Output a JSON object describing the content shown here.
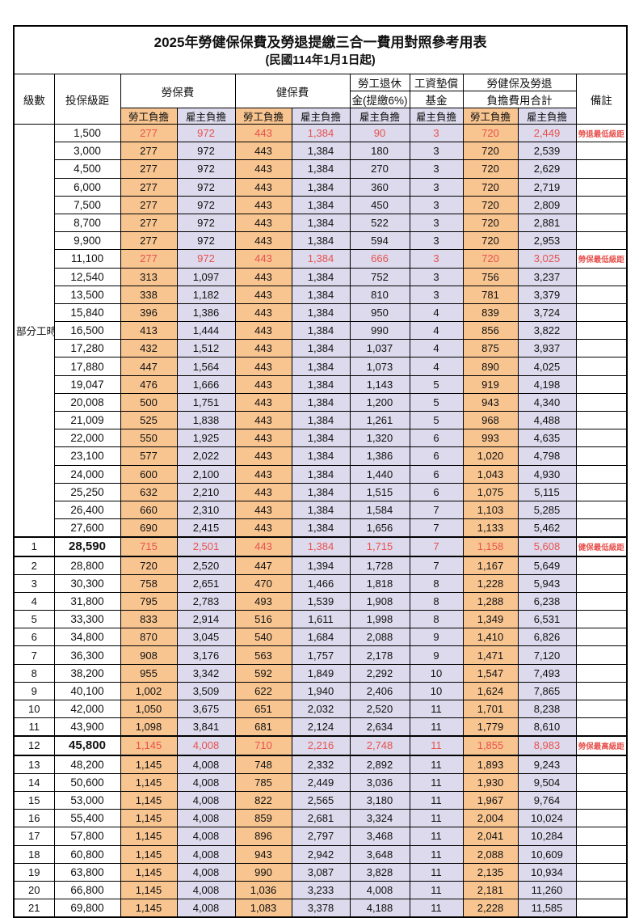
{
  "title": "2025年勞健保保費及勞退提繳三合一費用對照參考用表",
  "subtitle": "(民國114年1月1日起)",
  "colors": {
    "employee_bg": "#F8C591",
    "employer_bg": "#DCDAEC",
    "highlight_red": "#E8524E"
  },
  "header": {
    "level": "級數",
    "bracket": "投保級距",
    "labor_insurance": "勞保費",
    "health_insurance": "健保費",
    "pension_line1": "勞工退休",
    "pension_line2": "金(提繳6%)",
    "wage_fund_line1": "工資墊償",
    "wage_fund_line2": "基金",
    "total_line1": "勞健保及勞退",
    "total_line2": "負擔費用合計",
    "note": "備註",
    "employee": "勞工負擔",
    "employer": "雇主負擔"
  },
  "part_time_label": "部分工時",
  "rows": [
    {
      "group": "part-time",
      "level": "",
      "bracket": "1,500",
      "li_emp": "277",
      "li_er": "972",
      "hi_emp": "443",
      "hi_er": "1,384",
      "pension": "90",
      "fund": "3",
      "tot_emp": "720",
      "tot_er": "2,449",
      "note": "勞退最低級距",
      "red": true,
      "bold": false,
      "thick": false
    },
    {
      "group": "part-time",
      "level": "",
      "bracket": "3,000",
      "li_emp": "277",
      "li_er": "972",
      "hi_emp": "443",
      "hi_er": "1,384",
      "pension": "180",
      "fund": "3",
      "tot_emp": "720",
      "tot_er": "2,539",
      "note": "",
      "red": false,
      "bold": false,
      "thick": false
    },
    {
      "group": "part-time",
      "level": "",
      "bracket": "4,500",
      "li_emp": "277",
      "li_er": "972",
      "hi_emp": "443",
      "hi_er": "1,384",
      "pension": "270",
      "fund": "3",
      "tot_emp": "720",
      "tot_er": "2,629",
      "note": "",
      "red": false,
      "bold": false,
      "thick": false
    },
    {
      "group": "part-time",
      "level": "",
      "bracket": "6,000",
      "li_emp": "277",
      "li_er": "972",
      "hi_emp": "443",
      "hi_er": "1,384",
      "pension": "360",
      "fund": "3",
      "tot_emp": "720",
      "tot_er": "2,719",
      "note": "",
      "red": false,
      "bold": false,
      "thick": false
    },
    {
      "group": "part-time",
      "level": "",
      "bracket": "7,500",
      "li_emp": "277",
      "li_er": "972",
      "hi_emp": "443",
      "hi_er": "1,384",
      "pension": "450",
      "fund": "3",
      "tot_emp": "720",
      "tot_er": "2,809",
      "note": "",
      "red": false,
      "bold": false,
      "thick": false
    },
    {
      "group": "part-time",
      "level": "",
      "bracket": "8,700",
      "li_emp": "277",
      "li_er": "972",
      "hi_emp": "443",
      "hi_er": "1,384",
      "pension": "522",
      "fund": "3",
      "tot_emp": "720",
      "tot_er": "2,881",
      "note": "",
      "red": false,
      "bold": false,
      "thick": false
    },
    {
      "group": "part-time",
      "level": "",
      "bracket": "9,900",
      "li_emp": "277",
      "li_er": "972",
      "hi_emp": "443",
      "hi_er": "1,384",
      "pension": "594",
      "fund": "3",
      "tot_emp": "720",
      "tot_er": "2,953",
      "note": "",
      "red": false,
      "bold": false,
      "thick": false
    },
    {
      "group": "part-time",
      "level": "",
      "bracket": "11,100",
      "li_emp": "277",
      "li_er": "972",
      "hi_emp": "443",
      "hi_er": "1,384",
      "pension": "666",
      "fund": "3",
      "tot_emp": "720",
      "tot_er": "3,025",
      "note": "勞保最低級距",
      "red": true,
      "bold": false,
      "thick": false
    },
    {
      "group": "part-time",
      "level": "",
      "bracket": "12,540",
      "li_emp": "313",
      "li_er": "1,097",
      "hi_emp": "443",
      "hi_er": "1,384",
      "pension": "752",
      "fund": "3",
      "tot_emp": "756",
      "tot_er": "3,237",
      "note": "",
      "red": false,
      "bold": false,
      "thick": false
    },
    {
      "group": "part-time",
      "level": "",
      "bracket": "13,500",
      "li_emp": "338",
      "li_er": "1,182",
      "hi_emp": "443",
      "hi_er": "1,384",
      "pension": "810",
      "fund": "3",
      "tot_emp": "781",
      "tot_er": "3,379",
      "note": "",
      "red": false,
      "bold": false,
      "thick": false
    },
    {
      "group": "part-time",
      "level": "",
      "bracket": "15,840",
      "li_emp": "396",
      "li_er": "1,386",
      "hi_emp": "443",
      "hi_er": "1,384",
      "pension": "950",
      "fund": "4",
      "tot_emp": "839",
      "tot_er": "3,724",
      "note": "",
      "red": false,
      "bold": false,
      "thick": false
    },
    {
      "group": "part-time",
      "level": "",
      "bracket": "16,500",
      "li_emp": "413",
      "li_er": "1,444",
      "hi_emp": "443",
      "hi_er": "1,384",
      "pension": "990",
      "fund": "4",
      "tot_emp": "856",
      "tot_er": "3,822",
      "note": "",
      "red": false,
      "bold": false,
      "thick": false
    },
    {
      "group": "part-time",
      "level": "",
      "bracket": "17,280",
      "li_emp": "432",
      "li_er": "1,512",
      "hi_emp": "443",
      "hi_er": "1,384",
      "pension": "1,037",
      "fund": "4",
      "tot_emp": "875",
      "tot_er": "3,937",
      "note": "",
      "red": false,
      "bold": false,
      "thick": false
    },
    {
      "group": "part-time",
      "level": "",
      "bracket": "17,880",
      "li_emp": "447",
      "li_er": "1,564",
      "hi_emp": "443",
      "hi_er": "1,384",
      "pension": "1,073",
      "fund": "4",
      "tot_emp": "890",
      "tot_er": "4,025",
      "note": "",
      "red": false,
      "bold": false,
      "thick": false
    },
    {
      "group": "part-time",
      "level": "",
      "bracket": "19,047",
      "li_emp": "476",
      "li_er": "1,666",
      "hi_emp": "443",
      "hi_er": "1,384",
      "pension": "1,143",
      "fund": "5",
      "tot_emp": "919",
      "tot_er": "4,198",
      "note": "",
      "red": false,
      "bold": false,
      "thick": false
    },
    {
      "group": "part-time",
      "level": "",
      "bracket": "20,008",
      "li_emp": "500",
      "li_er": "1,751",
      "hi_emp": "443",
      "hi_er": "1,384",
      "pension": "1,200",
      "fund": "5",
      "tot_emp": "943",
      "tot_er": "4,340",
      "note": "",
      "red": false,
      "bold": false,
      "thick": false
    },
    {
      "group": "part-time",
      "level": "",
      "bracket": "21,009",
      "li_emp": "525",
      "li_er": "1,838",
      "hi_emp": "443",
      "hi_er": "1,384",
      "pension": "1,261",
      "fund": "5",
      "tot_emp": "968",
      "tot_er": "4,488",
      "note": "",
      "red": false,
      "bold": false,
      "thick": false
    },
    {
      "group": "part-time",
      "level": "",
      "bracket": "22,000",
      "li_emp": "550",
      "li_er": "1,925",
      "hi_emp": "443",
      "hi_er": "1,384",
      "pension": "1,320",
      "fund": "6",
      "tot_emp": "993",
      "tot_er": "4,635",
      "note": "",
      "red": false,
      "bold": false,
      "thick": false
    },
    {
      "group": "part-time",
      "level": "",
      "bracket": "23,100",
      "li_emp": "577",
      "li_er": "2,022",
      "hi_emp": "443",
      "hi_er": "1,384",
      "pension": "1,386",
      "fund": "6",
      "tot_emp": "1,020",
      "tot_er": "4,798",
      "note": "",
      "red": false,
      "bold": false,
      "thick": false
    },
    {
      "group": "part-time",
      "level": "",
      "bracket": "24,000",
      "li_emp": "600",
      "li_er": "2,100",
      "hi_emp": "443",
      "hi_er": "1,384",
      "pension": "1,440",
      "fund": "6",
      "tot_emp": "1,043",
      "tot_er": "4,930",
      "note": "",
      "red": false,
      "bold": false,
      "thick": false
    },
    {
      "group": "part-time",
      "level": "",
      "bracket": "25,250",
      "li_emp": "632",
      "li_er": "2,210",
      "hi_emp": "443",
      "hi_er": "1,384",
      "pension": "1,515",
      "fund": "6",
      "tot_emp": "1,075",
      "tot_er": "5,115",
      "note": "",
      "red": false,
      "bold": false,
      "thick": false
    },
    {
      "group": "part-time",
      "level": "",
      "bracket": "26,400",
      "li_emp": "660",
      "li_er": "2,310",
      "hi_emp": "443",
      "hi_er": "1,384",
      "pension": "1,584",
      "fund": "7",
      "tot_emp": "1,103",
      "tot_er": "5,285",
      "note": "",
      "red": false,
      "bold": false,
      "thick": false
    },
    {
      "group": "part-time",
      "level": "",
      "bracket": "27,600",
      "li_emp": "690",
      "li_er": "2,415",
      "hi_emp": "443",
      "hi_er": "1,384",
      "pension": "1,656",
      "fund": "7",
      "tot_emp": "1,133",
      "tot_er": "5,462",
      "note": "",
      "red": false,
      "bold": false,
      "thick": false
    },
    {
      "group": "level",
      "level": "1",
      "bracket": "28,590",
      "li_emp": "715",
      "li_er": "2,501",
      "hi_emp": "443",
      "hi_er": "1,384",
      "pension": "1,715",
      "fund": "7",
      "tot_emp": "1,158",
      "tot_er": "5,608",
      "note": "健保最低級距",
      "red": true,
      "bold": true,
      "thick": true
    },
    {
      "group": "level",
      "level": "2",
      "bracket": "28,800",
      "li_emp": "720",
      "li_er": "2,520",
      "hi_emp": "447",
      "hi_er": "1,394",
      "pension": "1,728",
      "fund": "7",
      "tot_emp": "1,167",
      "tot_er": "5,649",
      "note": "",
      "red": false,
      "bold": false,
      "thick": false
    },
    {
      "group": "level",
      "level": "3",
      "bracket": "30,300",
      "li_emp": "758",
      "li_er": "2,651",
      "hi_emp": "470",
      "hi_er": "1,466",
      "pension": "1,818",
      "fund": "8",
      "tot_emp": "1,228",
      "tot_er": "5,943",
      "note": "",
      "red": false,
      "bold": false,
      "thick": false
    },
    {
      "group": "level",
      "level": "4",
      "bracket": "31,800",
      "li_emp": "795",
      "li_er": "2,783",
      "hi_emp": "493",
      "hi_er": "1,539",
      "pension": "1,908",
      "fund": "8",
      "tot_emp": "1,288",
      "tot_er": "6,238",
      "note": "",
      "red": false,
      "bold": false,
      "thick": false
    },
    {
      "group": "level",
      "level": "5",
      "bracket": "33,300",
      "li_emp": "833",
      "li_er": "2,914",
      "hi_emp": "516",
      "hi_er": "1,611",
      "pension": "1,998",
      "fund": "8",
      "tot_emp": "1,349",
      "tot_er": "6,531",
      "note": "",
      "red": false,
      "bold": false,
      "thick": false
    },
    {
      "group": "level",
      "level": "6",
      "bracket": "34,800",
      "li_emp": "870",
      "li_er": "3,045",
      "hi_emp": "540",
      "hi_er": "1,684",
      "pension": "2,088",
      "fund": "9",
      "tot_emp": "1,410",
      "tot_er": "6,826",
      "note": "",
      "red": false,
      "bold": false,
      "thick": false
    },
    {
      "group": "level",
      "level": "7",
      "bracket": "36,300",
      "li_emp": "908",
      "li_er": "3,176",
      "hi_emp": "563",
      "hi_er": "1,757",
      "pension": "2,178",
      "fund": "9",
      "tot_emp": "1,471",
      "tot_er": "7,120",
      "note": "",
      "red": false,
      "bold": false,
      "thick": false
    },
    {
      "group": "level",
      "level": "8",
      "bracket": "38,200",
      "li_emp": "955",
      "li_er": "3,342",
      "hi_emp": "592",
      "hi_er": "1,849",
      "pension": "2,292",
      "fund": "10",
      "tot_emp": "1,547",
      "tot_er": "7,493",
      "note": "",
      "red": false,
      "bold": false,
      "thick": false
    },
    {
      "group": "level",
      "level": "9",
      "bracket": "40,100",
      "li_emp": "1,002",
      "li_er": "3,509",
      "hi_emp": "622",
      "hi_er": "1,940",
      "pension": "2,406",
      "fund": "10",
      "tot_emp": "1,624",
      "tot_er": "7,865",
      "note": "",
      "red": false,
      "bold": false,
      "thick": false
    },
    {
      "group": "level",
      "level": "10",
      "bracket": "42,000",
      "li_emp": "1,050",
      "li_er": "3,675",
      "hi_emp": "651",
      "hi_er": "2,032",
      "pension": "2,520",
      "fund": "11",
      "tot_emp": "1,701",
      "tot_er": "8,238",
      "note": "",
      "red": false,
      "bold": false,
      "thick": false
    },
    {
      "group": "level",
      "level": "11",
      "bracket": "43,900",
      "li_emp": "1,098",
      "li_er": "3,841",
      "hi_emp": "681",
      "hi_er": "2,124",
      "pension": "2,634",
      "fund": "11",
      "tot_emp": "1,779",
      "tot_er": "8,610",
      "note": "",
      "red": false,
      "bold": false,
      "thick": false
    },
    {
      "group": "level",
      "level": "12",
      "bracket": "45,800",
      "li_emp": "1,145",
      "li_er": "4,008",
      "hi_emp": "710",
      "hi_er": "2,216",
      "pension": "2,748",
      "fund": "11",
      "tot_emp": "1,855",
      "tot_er": "8,983",
      "note": "勞保最高級距",
      "red": true,
      "bold": true,
      "thick": true
    },
    {
      "group": "level",
      "level": "13",
      "bracket": "48,200",
      "li_emp": "1,145",
      "li_er": "4,008",
      "hi_emp": "748",
      "hi_er": "2,332",
      "pension": "2,892",
      "fund": "11",
      "tot_emp": "1,893",
      "tot_er": "9,243",
      "note": "",
      "red": false,
      "bold": false,
      "thick": false
    },
    {
      "group": "level",
      "level": "14",
      "bracket": "50,600",
      "li_emp": "1,145",
      "li_er": "4,008",
      "hi_emp": "785",
      "hi_er": "2,449",
      "pension": "3,036",
      "fund": "11",
      "tot_emp": "1,930",
      "tot_er": "9,504",
      "note": "",
      "red": false,
      "bold": false,
      "thick": false
    },
    {
      "group": "level",
      "level": "15",
      "bracket": "53,000",
      "li_emp": "1,145",
      "li_er": "4,008",
      "hi_emp": "822",
      "hi_er": "2,565",
      "pension": "3,180",
      "fund": "11",
      "tot_emp": "1,967",
      "tot_er": "9,764",
      "note": "",
      "red": false,
      "bold": false,
      "thick": false
    },
    {
      "group": "level",
      "level": "16",
      "bracket": "55,400",
      "li_emp": "1,145",
      "li_er": "4,008",
      "hi_emp": "859",
      "hi_er": "2,681",
      "pension": "3,324",
      "fund": "11",
      "tot_emp": "2,004",
      "tot_er": "10,024",
      "note": "",
      "red": false,
      "bold": false,
      "thick": false
    },
    {
      "group": "level",
      "level": "17",
      "bracket": "57,800",
      "li_emp": "1,145",
      "li_er": "4,008",
      "hi_emp": "896",
      "hi_er": "2,797",
      "pension": "3,468",
      "fund": "11",
      "tot_emp": "2,041",
      "tot_er": "10,284",
      "note": "",
      "red": false,
      "bold": false,
      "thick": false
    },
    {
      "group": "level",
      "level": "18",
      "bracket": "60,800",
      "li_emp": "1,145",
      "li_er": "4,008",
      "hi_emp": "943",
      "hi_er": "2,942",
      "pension": "3,648",
      "fund": "11",
      "tot_emp": "2,088",
      "tot_er": "10,609",
      "note": "",
      "red": false,
      "bold": false,
      "thick": false
    },
    {
      "group": "level",
      "level": "19",
      "bracket": "63,800",
      "li_emp": "1,145",
      "li_er": "4,008",
      "hi_emp": "990",
      "hi_er": "3,087",
      "pension": "3,828",
      "fund": "11",
      "tot_emp": "2,135",
      "tot_er": "10,934",
      "note": "",
      "red": false,
      "bold": false,
      "thick": false
    },
    {
      "group": "level",
      "level": "20",
      "bracket": "66,800",
      "li_emp": "1,145",
      "li_er": "4,008",
      "hi_emp": "1,036",
      "hi_er": "3,233",
      "pension": "4,008",
      "fund": "11",
      "tot_emp": "2,181",
      "tot_er": "11,260",
      "note": "",
      "red": false,
      "bold": false,
      "thick": false
    },
    {
      "group": "level",
      "level": "21",
      "bracket": "69,800",
      "li_emp": "1,145",
      "li_er": "4,008",
      "hi_emp": "1,083",
      "hi_er": "3,378",
      "pension": "4,188",
      "fund": "11",
      "tot_emp": "2,228",
      "tot_er": "11,585",
      "note": "",
      "red": false,
      "bold": false,
      "thick": false
    }
  ]
}
